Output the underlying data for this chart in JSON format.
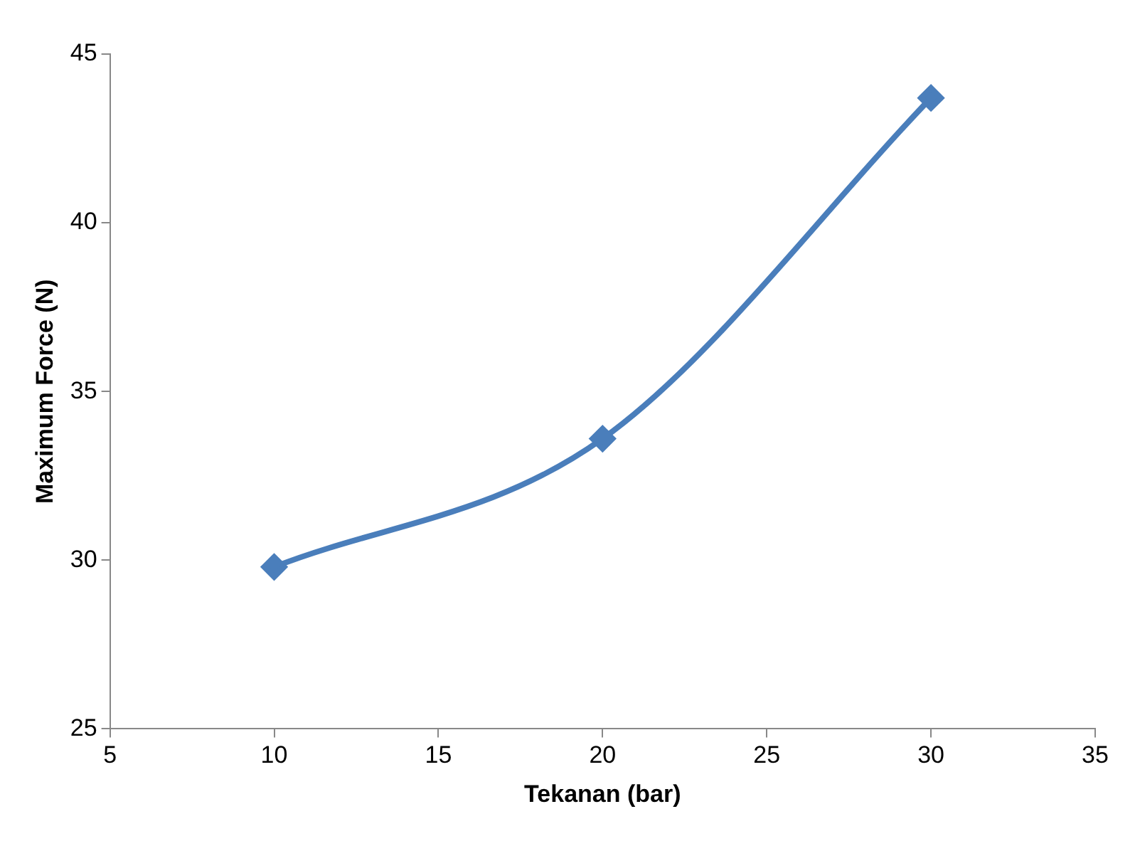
{
  "chart_data": {
    "type": "line",
    "xlabel": "Tekanan (bar)",
    "ylabel": "Maximum Force (N)",
    "x": [
      10,
      20,
      30
    ],
    "series": [
      {
        "color": "#4a7ebb",
        "values": [
          29.8,
          33.6,
          43.7
        ]
      }
    ],
    "xlim": [
      5,
      35
    ],
    "xticks": [
      5,
      10,
      15,
      20,
      25,
      30,
      35
    ],
    "ylim": [
      25,
      45
    ],
    "yticks": [
      25,
      30,
      35,
      40,
      45
    ],
    "grid": false,
    "legend": false,
    "marker": "diamond",
    "line_style": "solid"
  }
}
